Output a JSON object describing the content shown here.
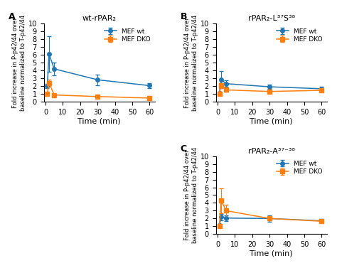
{
  "chart_data": [
    {
      "type": "line",
      "title": "wt-rPAR₂",
      "panel_label": "A",
      "x_label": "Time (min)",
      "y_label": "Fold increase in P-p42/44 over\nbaseline normalized to T-p42/44",
      "x": [
        1,
        2,
        5,
        30,
        60
      ],
      "series": [
        {
          "name": "MEF wt",
          "marker": "o",
          "values": [
            2.0,
            6.1,
            4.2,
            2.8,
            2.05
          ],
          "errors": [
            0.3,
            2.3,
            0.8,
            0.7,
            0.3
          ]
        },
        {
          "name": "MEF DKO",
          "marker": "s",
          "values": [
            1.0,
            2.4,
            0.85,
            0.65,
            0.45
          ],
          "errors": [
            0.1,
            0.4,
            0.15,
            0.1,
            0.1
          ]
        }
      ],
      "xlim": [
        -1,
        63
      ],
      "xticks": [
        0,
        10,
        20,
        30,
        40,
        50,
        60
      ],
      "ylim": [
        0,
        10
      ],
      "yticks": [
        0,
        1,
        2,
        3,
        4,
        5,
        6,
        7,
        8,
        9,
        10
      ],
      "legend": "upper right"
    },
    {
      "type": "line",
      "title": "rPAR₂-L³⁷S³⁸",
      "panel_label": "B",
      "x_label": "Time (min)",
      "y_label": "Fold increase in P-p42/44 over\nbaseline normalized to T-p42/44",
      "x": [
        1,
        2,
        5,
        30,
        60
      ],
      "series": [
        {
          "name": "MEF wt",
          "marker": "o",
          "values": [
            1.05,
            2.8,
            2.3,
            1.9,
            1.65
          ],
          "errors": [
            0.2,
            1.1,
            0.4,
            0.3,
            0.3
          ]
        },
        {
          "name": "MEF DKO",
          "marker": "s",
          "values": [
            1.0,
            2.05,
            1.5,
            1.3,
            1.45
          ],
          "errors": [
            0.1,
            0.35,
            0.2,
            0.15,
            0.2
          ]
        }
      ],
      "xlim": [
        -1,
        63
      ],
      "xticks": [
        0,
        10,
        20,
        30,
        40,
        50,
        60
      ],
      "ylim": [
        0,
        10
      ],
      "yticks": [
        0,
        1,
        2,
        3,
        4,
        5,
        6,
        7,
        8,
        9,
        10
      ],
      "legend": "upper right"
    },
    {
      "type": "line",
      "title": "rPAR₂-A³⁷⁻³⁸",
      "panel_label": "C",
      "x_label": "Time (min)",
      "y_label": "Fold increase in P-p42/44 over\nbaseline normalized to T-p42/44",
      "x": [
        1,
        2,
        5,
        30,
        60
      ],
      "series": [
        {
          "name": "MEF wt",
          "marker": "o",
          "values": [
            1.1,
            2.2,
            2.05,
            2.0,
            1.7
          ],
          "errors": [
            0.2,
            0.4,
            0.35,
            0.4,
            0.2
          ]
        },
        {
          "name": "MEF DKO",
          "marker": "s",
          "values": [
            1.05,
            4.3,
            3.0,
            2.0,
            1.65
          ],
          "errors": [
            0.2,
            1.6,
            0.8,
            0.25,
            0.12
          ]
        }
      ],
      "xlim": [
        -1,
        63
      ],
      "xticks": [
        0,
        10,
        20,
        30,
        40,
        50,
        60
      ],
      "ylim": [
        0,
        10
      ],
      "yticks": [
        0,
        1,
        2,
        3,
        4,
        5,
        6,
        7,
        8,
        9,
        10
      ],
      "legend": "upper right"
    }
  ]
}
